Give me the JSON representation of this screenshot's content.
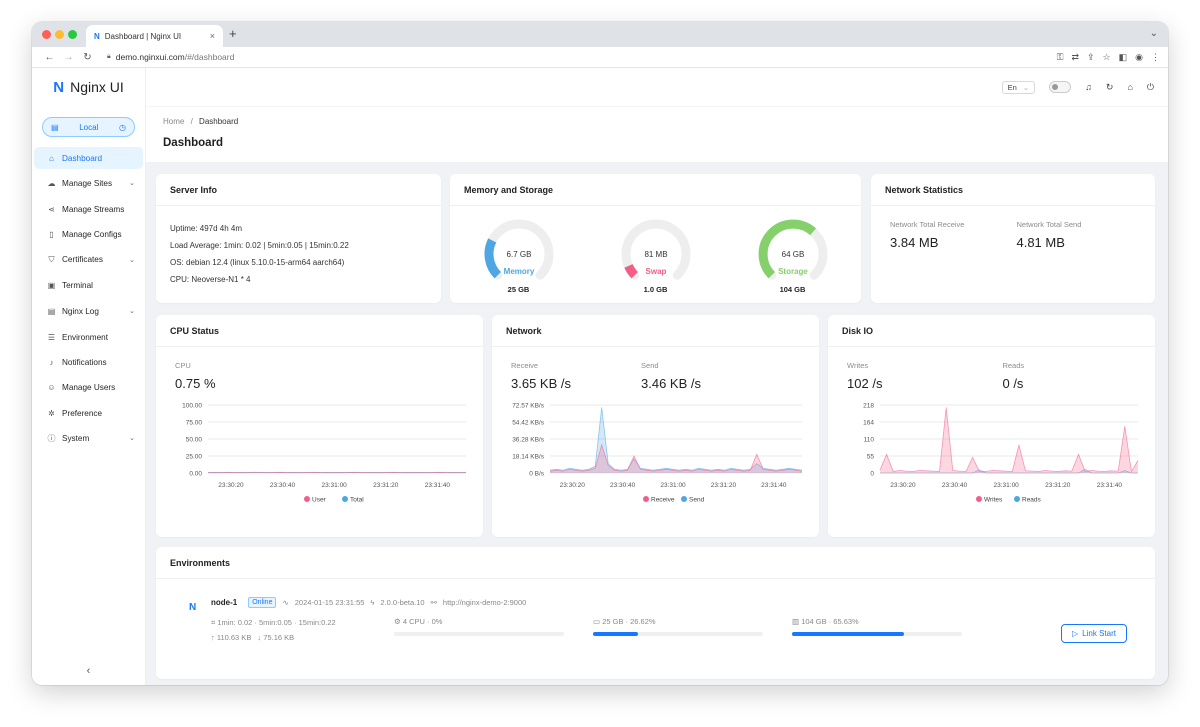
{
  "browser": {
    "tab_title": "Dashboard | Nginx UI",
    "url_host": "demo.nginxui.com",
    "url_path": "/#/dashboard"
  },
  "app": {
    "logo_text": "Nginx UI",
    "env_selector": "Local",
    "language": "En"
  },
  "sidebar": {
    "items": [
      {
        "label": "Dashboard",
        "icon": "home-icon",
        "glyph": "⌂",
        "active": true,
        "has_children": false
      },
      {
        "label": "Manage Sites",
        "icon": "cloud-icon",
        "glyph": "☁",
        "active": false,
        "has_children": true
      },
      {
        "label": "Manage Streams",
        "icon": "share-icon",
        "glyph": "⋖",
        "active": false,
        "has_children": false
      },
      {
        "label": "Manage Configs",
        "icon": "file-icon",
        "glyph": "▯",
        "active": false,
        "has_children": false
      },
      {
        "label": "Certificates",
        "icon": "shield-icon",
        "glyph": "⛉",
        "active": false,
        "has_children": true
      },
      {
        "label": "Terminal",
        "icon": "terminal-icon",
        "glyph": "▣",
        "active": false,
        "has_children": false
      },
      {
        "label": "Nginx Log",
        "icon": "log-icon",
        "glyph": "▤",
        "active": false,
        "has_children": true
      },
      {
        "label": "Environment",
        "icon": "database-icon",
        "glyph": "☰",
        "active": false,
        "has_children": false
      },
      {
        "label": "Notifications",
        "icon": "bell-icon",
        "glyph": "♪",
        "active": false,
        "has_children": false
      },
      {
        "label": "Manage Users",
        "icon": "user-icon",
        "glyph": "☺",
        "active": false,
        "has_children": false
      },
      {
        "label": "Preference",
        "icon": "gear-icon",
        "glyph": "✲",
        "active": false,
        "has_children": false
      },
      {
        "label": "System",
        "icon": "info-icon",
        "glyph": "ⓘ",
        "active": false,
        "has_children": true
      }
    ]
  },
  "breadcrumb": {
    "home": "Home",
    "separator": "/",
    "current": "Dashboard"
  },
  "page_title": "Dashboard",
  "server_info": {
    "title": "Server Info",
    "uptime": "Uptime: 497d 4h 4m",
    "load": "Load Average: 1min: 0.02 | 5min:0.05 | 15min:0.22",
    "os": "OS: debian 12.4 (linux 5.10.0-15-arm64 aarch64)",
    "cpu": "CPU: Neoverse-N1 * 4"
  },
  "memory_storage": {
    "title": "Memory and Storage",
    "gauges": [
      {
        "value": "6.7 GB",
        "label": "Memory",
        "total": "25 GB",
        "percent": 26.6,
        "color": "#4ea6e4"
      },
      {
        "value": "81 MB",
        "label": "Swap",
        "total": "1.0 GB",
        "percent": 8,
        "color": "#f25e86"
      },
      {
        "value": "64 GB",
        "label": "Storage",
        "total": "104 GB",
        "percent": 65.6,
        "color": "#86d06c"
      }
    ]
  },
  "network_stats": {
    "title": "Network Statistics",
    "receive_label": "Network Total Receive",
    "receive_value": "3.84 MB",
    "send_label": "Network Total Send",
    "send_value": "4.81 MB"
  },
  "cpu_status": {
    "title": "CPU Status",
    "label": "CPU",
    "value": "0.75",
    "unit": "%",
    "legend": [
      "User",
      "Total"
    ]
  },
  "network": {
    "title": "Network",
    "receive_label": "Receive",
    "receive_value": "3.65 KB",
    "send_label": "Send",
    "send_value": "3.46 KB",
    "unit": "/s",
    "legend": [
      "Receive",
      "Send"
    ]
  },
  "disk_io": {
    "title": "Disk IO",
    "writes_label": "Writes",
    "writes_value": "102",
    "reads_label": "Reads",
    "reads_value": "0",
    "unit": "/s",
    "legend": [
      "Writes",
      "Reads"
    ]
  },
  "chart_data": [
    {
      "type": "area",
      "title": "",
      "y_ticks": [
        "100.00",
        "75.00",
        "50.00",
        "25.00",
        "0.00"
      ],
      "ylim": [
        0,
        100
      ],
      "x_ticks": [
        "23:30:20",
        "23:30:40",
        "23:31:00",
        "23:31:20",
        "23:31:40"
      ],
      "series": [
        {
          "name": "User",
          "color": "#f25e86",
          "values": [
            0.5,
            0.6,
            0.4,
            0.7,
            0.5,
            0.6,
            0.5,
            0.8,
            0.6,
            0.5,
            0.6,
            0.7,
            0.5,
            0.6,
            0.5,
            0.6,
            0.7,
            0.5,
            0.6,
            0.5,
            0.6,
            0.5,
            0.7,
            0.6,
            0.5,
            0.6,
            0.5,
            0.6,
            0.7,
            0.5,
            0.6,
            0.5,
            0.6,
            0.5,
            0.6,
            0.7,
            0.5,
            0.6,
            0.5,
            0.6
          ]
        },
        {
          "name": "Total",
          "color": "#4ea6e4",
          "values": [
            0.8,
            0.9,
            0.7,
            1.0,
            0.8,
            0.9,
            0.8,
            1.1,
            0.9,
            0.8,
            0.9,
            1.0,
            0.8,
            0.9,
            0.8,
            0.9,
            1.0,
            0.8,
            0.9,
            0.8,
            0.9,
            0.8,
            1.0,
            0.9,
            0.8,
            0.9,
            0.8,
            0.9,
            1.0,
            0.8,
            0.9,
            0.8,
            0.9,
            0.8,
            0.9,
            1.0,
            0.8,
            0.9,
            0.8,
            0.9
          ]
        }
      ]
    },
    {
      "type": "area",
      "title": "",
      "y_ticks": [
        "72.57 KB/s",
        "54.42 KB/s",
        "36.28 KB/s",
        "18.14 KB/s",
        "0 B/s"
      ],
      "ylim": [
        0,
        72.57
      ],
      "x_ticks": [
        "23:30:20",
        "23:30:40",
        "23:31:00",
        "23:31:20",
        "23:31:40"
      ],
      "series": [
        {
          "name": "Receive",
          "color": "#f25e86",
          "values": [
            2,
            3,
            2,
            4,
            3,
            2,
            3,
            5,
            30,
            8,
            3,
            2,
            3,
            18,
            4,
            3,
            2,
            3,
            4,
            3,
            2,
            3,
            2,
            4,
            3,
            2,
            3,
            2,
            4,
            3,
            2,
            3,
            20,
            4,
            3,
            2,
            3,
            4,
            3,
            2
          ]
        },
        {
          "name": "Send",
          "color": "#4ea6e4",
          "values": [
            3,
            4,
            3,
            5,
            4,
            3,
            4,
            7,
            70,
            10,
            4,
            3,
            4,
            15,
            5,
            4,
            3,
            4,
            5,
            4,
            3,
            4,
            3,
            5,
            4,
            3,
            4,
            3,
            5,
            4,
            3,
            4,
            10,
            5,
            4,
            3,
            4,
            5,
            4,
            3
          ]
        }
      ]
    },
    {
      "type": "area",
      "title": "",
      "y_ticks": [
        "218",
        "164",
        "110",
        "55",
        "0"
      ],
      "ylim": [
        0,
        218
      ],
      "x_ticks": [
        "23:30:20",
        "23:30:40",
        "23:31:00",
        "23:31:20",
        "23:31:40"
      ],
      "series": [
        {
          "name": "Writes",
          "color": "#f25e86",
          "values": [
            10,
            60,
            5,
            8,
            6,
            5,
            8,
            7,
            6,
            5,
            210,
            8,
            6,
            5,
            50,
            6,
            5,
            8,
            7,
            6,
            5,
            90,
            7,
            6,
            5,
            8,
            6,
            5,
            7,
            6,
            60,
            5,
            8,
            6,
            5,
            7,
            6,
            150,
            5,
            40
          ]
        },
        {
          "name": "Reads",
          "color": "#4ea6e4",
          "values": [
            0,
            0,
            0,
            0,
            0,
            0,
            0,
            0,
            0,
            0,
            0,
            0,
            0,
            0,
            0,
            10,
            0,
            0,
            0,
            0,
            0,
            0,
            0,
            0,
            0,
            0,
            0,
            0,
            0,
            0,
            0,
            12,
            0,
            0,
            0,
            0,
            0,
            8,
            0,
            0
          ]
        }
      ]
    }
  ],
  "environments": {
    "title": "Environments",
    "node": {
      "name": "node-1",
      "status": "Online",
      "time": "2024-01-15 23:31:55",
      "version": "2.0.0-beta.10",
      "url": "http://nginx-demo-2:9000",
      "load": "1min: 0.02 · 5min:0.05 · 15min:0.22",
      "upload": "110.63 KB",
      "download": "75.16 KB",
      "cpu": "4 CPU · 0%",
      "cpu_percent": 0,
      "memory": "25 GB · 26.62%",
      "memory_percent": 26.62,
      "disk": "104 GB · 65.63%",
      "disk_percent": 65.63,
      "link_label": "Link Start"
    }
  }
}
